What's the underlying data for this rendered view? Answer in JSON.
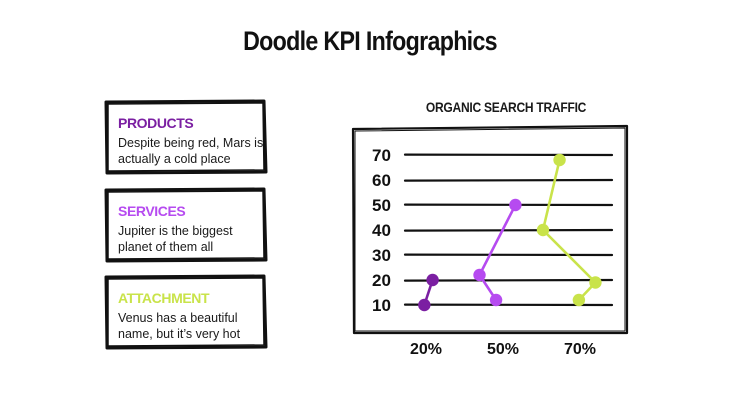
{
  "title": "Doodle KPI Infographics",
  "colors": {
    "products": "#7b1fa2",
    "services": "#b64bf0",
    "attachment": "#c9e34a",
    "ink": "#111111"
  },
  "cards": [
    {
      "heading": "PRODUCTS",
      "text": "Despite being red, Mars is actually a cold place",
      "color": "#7b1fa2"
    },
    {
      "heading": "SERVICES",
      "text": "Jupiter is the biggest planet of them all",
      "color": "#b64bf0"
    },
    {
      "heading": "ATTACHMENT",
      "text": "Venus has a beautiful name, but it’s very hot",
      "color": "#c9e34a"
    }
  ],
  "chart_data": {
    "type": "line",
    "title": "ORGANIC SEARCH TRAFFIC",
    "xlabel": "",
    "ylabel": "",
    "y_ticks": [
      "70",
      "60",
      "50",
      "40",
      "30",
      "20",
      "10"
    ],
    "x_ticks": [
      "20%",
      "50%",
      "70%"
    ],
    "ylim": [
      10,
      70
    ],
    "grid": true,
    "series": [
      {
        "color": "#7b1fa2",
        "points": [
          [
            20,
            20
          ],
          [
            17,
            10
          ]
        ]
      },
      {
        "color": "#b64bf0",
        "points": [
          [
            50,
            50
          ],
          [
            37,
            22
          ],
          [
            43,
            12
          ]
        ]
      },
      {
        "color": "#c9e34a",
        "points": [
          [
            66,
            68
          ],
          [
            60,
            40
          ],
          [
            79,
            19
          ],
          [
            73,
            12
          ]
        ]
      }
    ]
  }
}
